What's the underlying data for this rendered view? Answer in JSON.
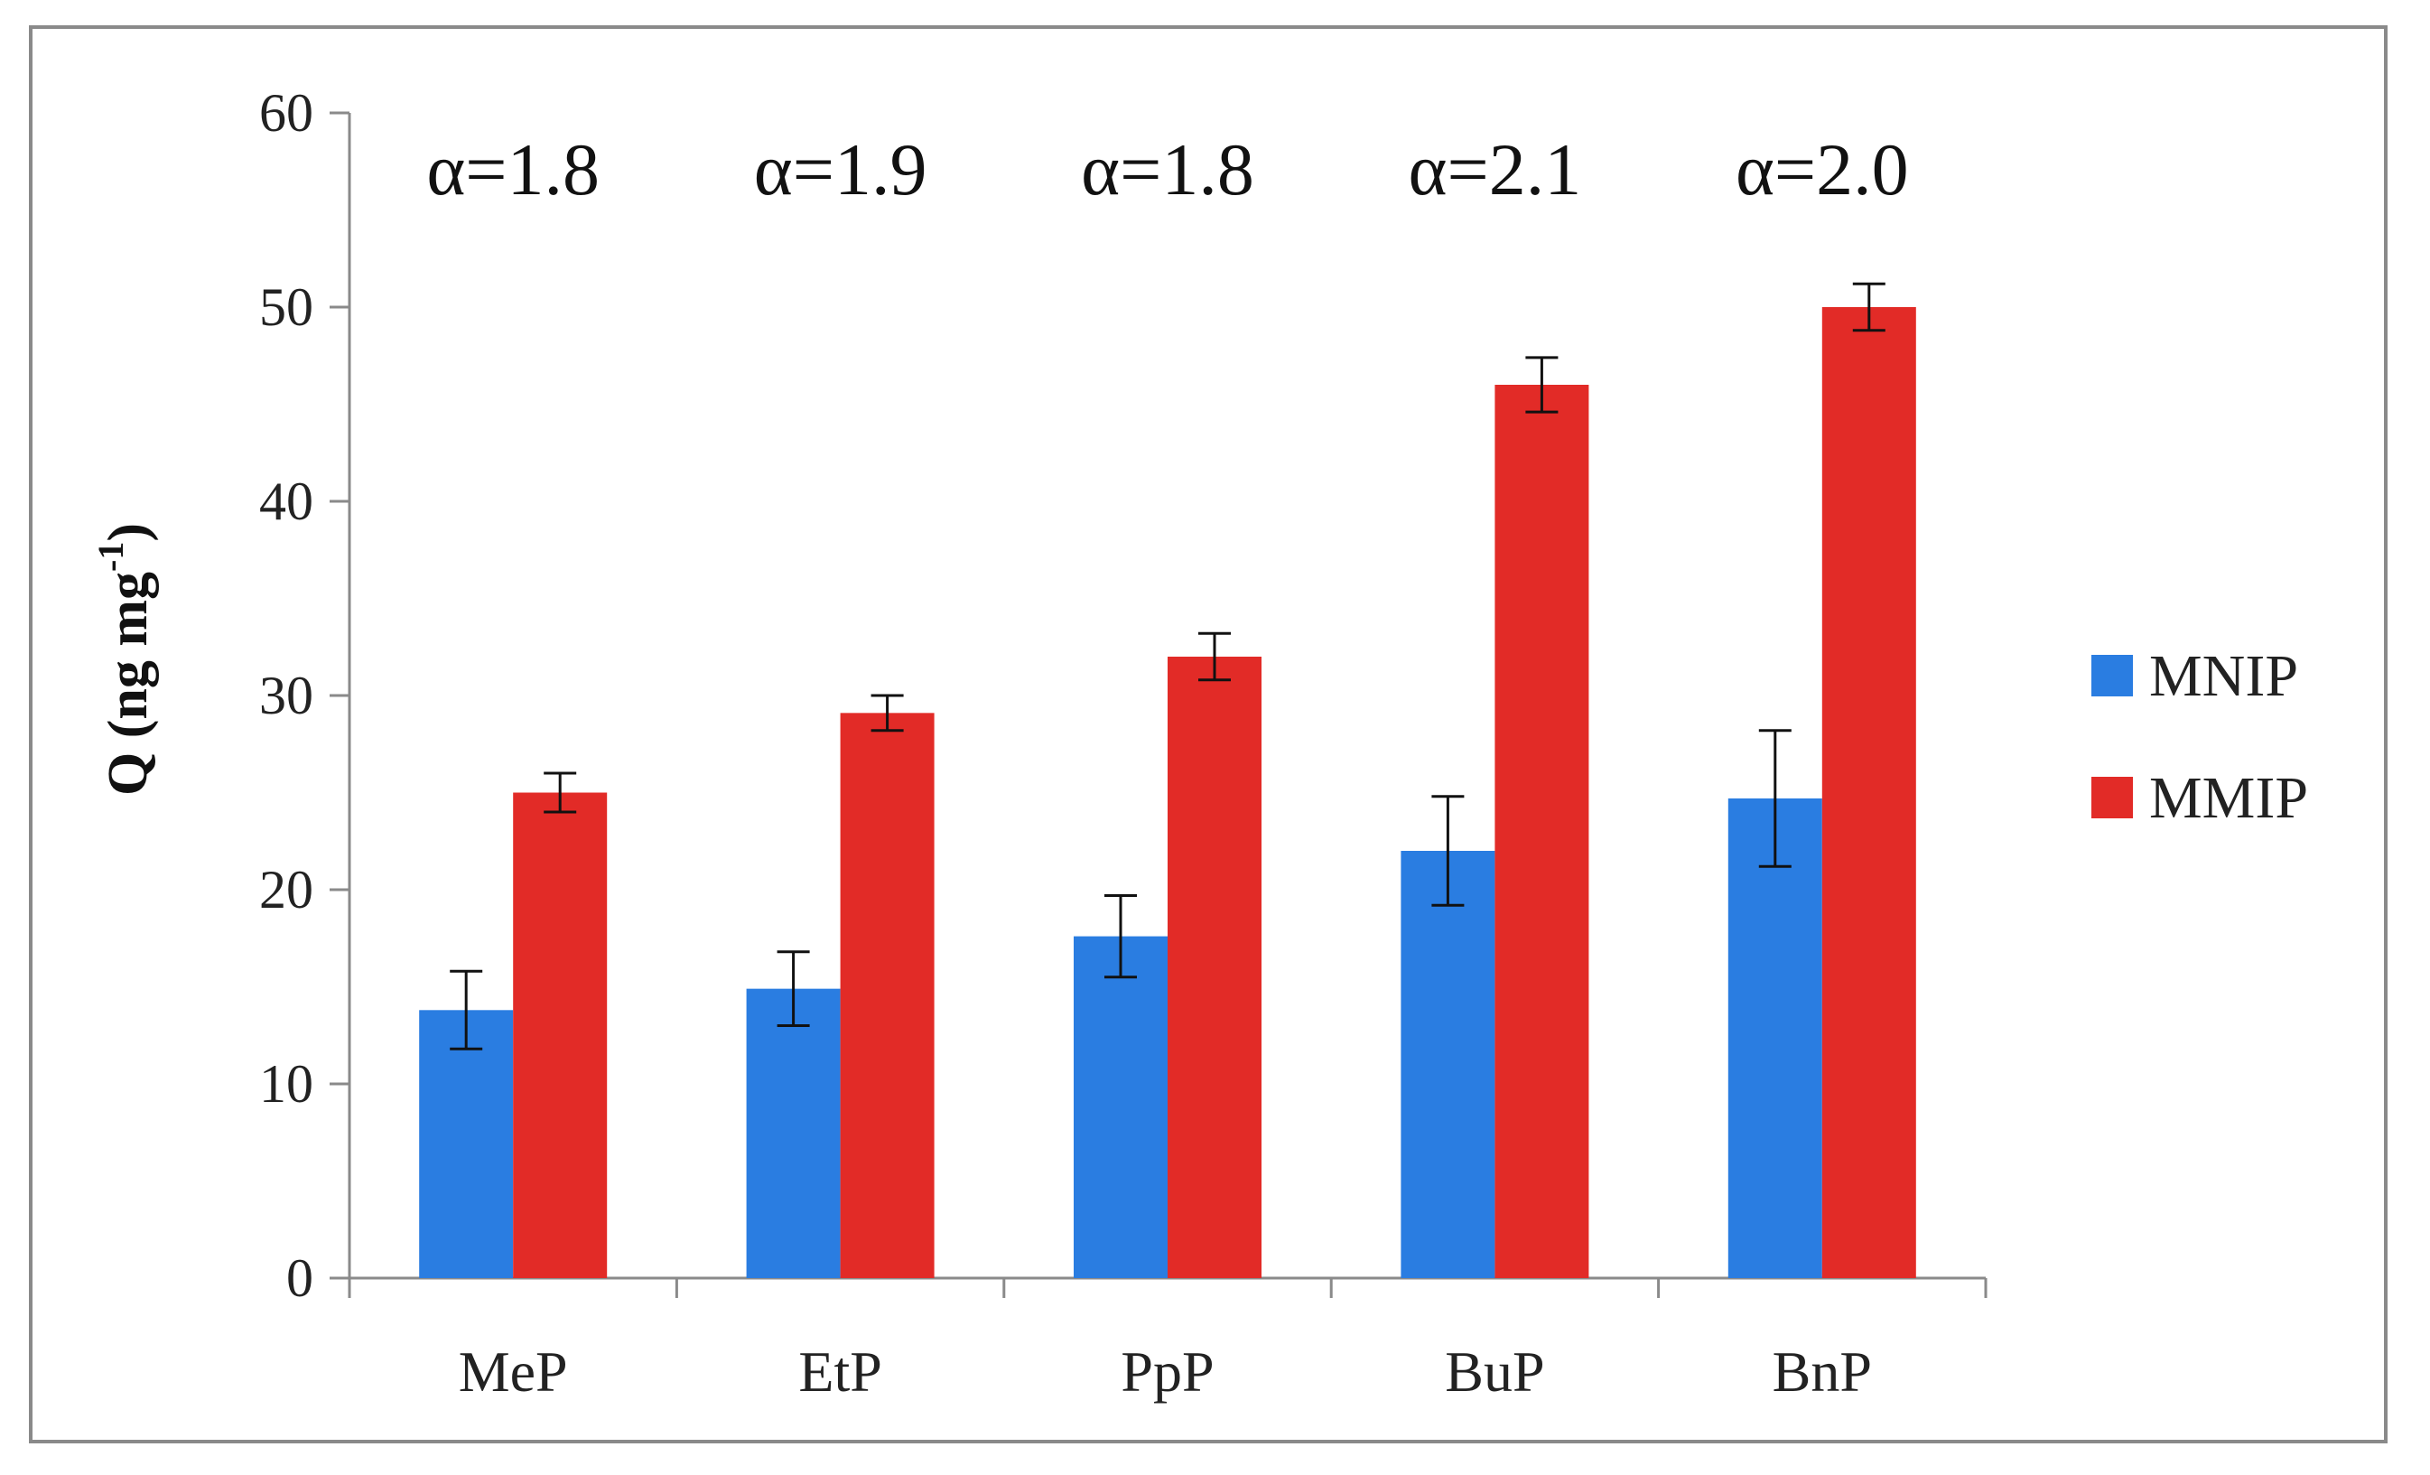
{
  "chart_data": {
    "type": "bar",
    "title": "",
    "xlabel": "",
    "ylabel": "Q (ng mg",
    "ylabel_superscript": "-1",
    "ylabel_close": ")",
    "ylim": [
      0,
      60
    ],
    "yticks": [
      0,
      10,
      20,
      30,
      40,
      50,
      60
    ],
    "categories": [
      "MeP",
      "EtP",
      "PpP",
      "BuP",
      "BnP"
    ],
    "series": [
      {
        "name": "MNIP",
        "color": "#2a7de1",
        "values": [
          13.8,
          14.9,
          17.6,
          22.0,
          24.7
        ],
        "errors": [
          2.0,
          1.9,
          2.1,
          2.8,
          3.5
        ]
      },
      {
        "name": "MMIP",
        "color": "#e22b27",
        "values": [
          25.0,
          29.1,
          32.0,
          46.0,
          50.0
        ],
        "errors": [
          1.0,
          0.9,
          1.2,
          1.4,
          1.2
        ]
      }
    ],
    "annotations": [
      "α=1.8",
      "α=1.9",
      "α=1.8",
      "α=2.1",
      "α=2.0"
    ],
    "legend_position": "right",
    "grid": false
  }
}
